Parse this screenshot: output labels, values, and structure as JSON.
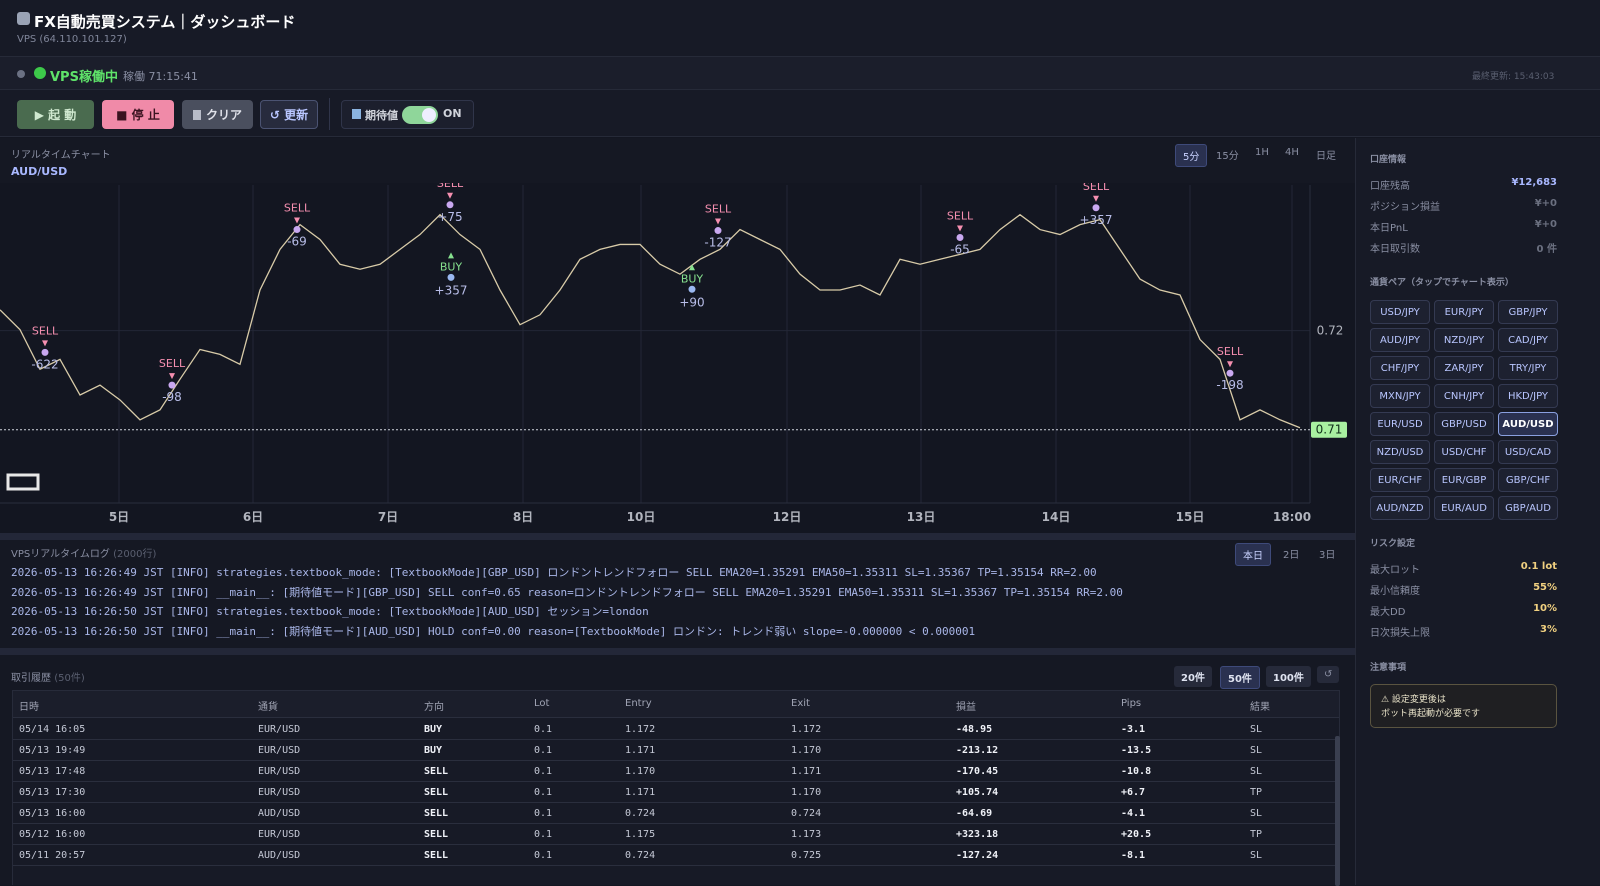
{
  "header": {
    "title": "FX自動売買システム｜ダッシュボード",
    "subtitle": "VPS (64.110.101.127)"
  },
  "status": {
    "state": "VPS稼働中",
    "uptime": "稼働 71:15:41",
    "updated": "最終更新: 15:43:03"
  },
  "toolbar": {
    "start": "▶ 起 動",
    "stop": "■ 停 止",
    "clear": "クリア",
    "refresh": "↺ 更新",
    "toggle": "期待値",
    "toggle_state": "ON"
  },
  "chart_panel": {
    "title": "リアルタイムチャート",
    "timeframes": [
      "5分",
      "15分",
      "1H",
      "4H",
      "日足"
    ],
    "active_timeframe": 0,
    "symbol": "AUD/USD"
  },
  "chart_data": {
    "type": "line",
    "color": "#d8cba8",
    "values": [
      0.7221,
      0.7201,
      0.7161,
      0.7171,
      0.7135,
      0.7145,
      0.713,
      0.711,
      0.712,
      0.7151,
      0.7181,
      0.7176,
      0.7166,
      0.7241,
      0.7282,
      0.7307,
      0.7292,
      0.7267,
      0.7262,
      0.7267,
      0.7282,
      0.7297,
      0.7317,
      0.7297,
      0.7282,
      0.7241,
      0.7206,
      0.7216,
      0.7241,
      0.7272,
      0.7282,
      0.7287,
      0.7287,
      0.7267,
      0.7257,
      0.7272,
      0.7282,
      0.7302,
      0.7292,
      0.7282,
      0.7257,
      0.7241,
      0.7241,
      0.7246,
      0.7236,
      0.7272,
      0.7267,
      0.7272,
      0.7277,
      0.7282,
      0.7302,
      0.7317,
      0.7302,
      0.7297,
      0.7307,
      0.7312,
      0.7282,
      0.7252,
      0.7241,
      0.7236,
      0.7191,
      0.7171,
      0.711,
      0.712,
      0.711,
      0.7102
    ],
    "xlim": [
      0,
      65.5
    ],
    "ylim": [
      0.7026,
      0.7347
    ],
    "yticks": [
      0.72
    ],
    "current_price": 0.71,
    "grid": true,
    "xticks": [
      {
        "value": 5.95,
        "label": "5日"
      },
      {
        "value": 12.65,
        "label": "6日"
      },
      {
        "value": 19.4,
        "label": "7日"
      },
      {
        "value": 26.15,
        "label": "8日"
      },
      {
        "value": 32.05,
        "label": "10日"
      },
      {
        "value": 39.35,
        "label": "12日"
      },
      {
        "value": 46.05,
        "label": "13日"
      },
      {
        "value": 52.8,
        "label": "14日"
      },
      {
        "value": 59.5,
        "label": "15日"
      },
      {
        "value": 64.6,
        "label": "18:00"
      }
    ],
    "trades": [
      {
        "side": "SELL",
        "x": 2.25,
        "y": 0.7176,
        "pnl": "-622"
      },
      {
        "side": "SELL",
        "x": 8.6,
        "y": 0.7143,
        "pnl": "-98"
      },
      {
        "side": "SELL",
        "x": 14.85,
        "y": 0.73,
        "pnl": "-69"
      },
      {
        "side": "SELL",
        "x": 22.5,
        "y": 0.7325,
        "pnl": "+75"
      },
      {
        "side": "BUY",
        "x": 22.55,
        "y": 0.7279,
        "pnl": "+357"
      },
      {
        "side": "BUY",
        "x": 34.6,
        "y": 0.7267,
        "pnl": "+90"
      },
      {
        "side": "SELL",
        "x": 35.9,
        "y": 0.7299,
        "pnl": "-127"
      },
      {
        "side": "SELL",
        "x": 48.0,
        "y": 0.7292,
        "pnl": "-65"
      },
      {
        "side": "SELL",
        "x": 54.8,
        "y": 0.7322,
        "pnl": "+357"
      },
      {
        "side": "SELL",
        "x": 61.5,
        "y": 0.7155,
        "pnl": "-198"
      }
    ]
  },
  "log_panel": {
    "title": "VPSリアルタイムログ",
    "count": "(2000行)",
    "tabs": [
      "本日",
      "2日",
      "3日"
    ],
    "active_tab": 0,
    "lines": [
      "2026-05-13 16:26:49 JST [INFO] strategies.textbook_mode: [TextbookMode][GBP_USD] ロンドントレンドフォロー SELL EMA20=1.35291 EMA50=1.35311 SL=1.35367 TP=1.35154 RR=2.00",
      "2026-05-13 16:26:49 JST [INFO] __main__: [期待値モード][GBP_USD] SELL conf=0.65 reason=ロンドントレンドフォロー SELL EMA20=1.35291 EMA50=1.35311 SL=1.35367 TP=1.35154 RR=2.00",
      "2026-05-13 16:26:50 JST [INFO] strategies.textbook_mode: [TextbookMode][AUD_USD] セッション=london",
      "2026-05-13 16:26:50 JST [INFO] __main__: [期待値モード][AUD_USD] HOLD conf=0.00 reason=[TextbookMode] ロンドン: トレンド弱い slope=-0.000000 < 0.000001"
    ]
  },
  "trade_panel": {
    "title": "取引履歴",
    "count": "(50件)",
    "limits": [
      "20件",
      "50件",
      "100件"
    ],
    "active_limit": 1,
    "refresh": "↺",
    "table": {
      "headers": [
        "日時",
        "通貨",
        "方向",
        "Lot",
        "Entry",
        "Exit",
        "損益",
        "Pips",
        "結果"
      ],
      "rows": [
        [
          "05/14 16:05",
          "EUR/USD",
          "BUY",
          "0.1",
          "1.172",
          "1.172",
          "-48.95",
          "-3.1",
          "SL"
        ],
        [
          "05/13 19:49",
          "EUR/USD",
          "BUY",
          "0.1",
          "1.171",
          "1.170",
          "-213.12",
          "-13.5",
          "SL"
        ],
        [
          "05/13 17:48",
          "EUR/USD",
          "SELL",
          "0.1",
          "1.170",
          "1.171",
          "-170.45",
          "-10.8",
          "SL"
        ],
        [
          "05/13 17:30",
          "EUR/USD",
          "SELL",
          "0.1",
          "1.171",
          "1.170",
          "+105.74",
          "+6.7",
          "TP"
        ],
        [
          "05/13 16:00",
          "AUD/USD",
          "SELL",
          "0.1",
          "0.724",
          "0.724",
          "-64.69",
          "-4.1",
          "SL"
        ],
        [
          "05/12 16:00",
          "EUR/USD",
          "SELL",
          "0.1",
          "1.175",
          "1.173",
          "+323.18",
          "+20.5",
          "TP"
        ],
        [
          "05/11 20:57",
          "AUD/USD",
          "SELL",
          "0.1",
          "0.724",
          "0.725",
          "-127.24",
          "-8.1",
          "SL"
        ]
      ]
    }
  },
  "sidebar": {
    "account_title": "口座情報",
    "account": [
      [
        "口座残高",
        "¥12,683"
      ],
      [
        "ポジション損益",
        "¥+0"
      ],
      [
        "本日PnL",
        "¥+0"
      ],
      [
        "本日取引数",
        "0 件"
      ]
    ],
    "pairs_title": "通貨ペア（タップでチャート表示）",
    "pairs": [
      "USD/JPY",
      "EUR/JPY",
      "GBP/JPY",
      "AUD/JPY",
      "NZD/JPY",
      "CAD/JPY",
      "CHF/JPY",
      "ZAR/JPY",
      "TRY/JPY",
      "MXN/JPY",
      "CNH/JPY",
      "HKD/JPY",
      "EUR/USD",
      "GBP/USD",
      "AUD/USD",
      "NZD/USD",
      "USD/CHF",
      "USD/CAD",
      "EUR/CHF",
      "EUR/GBP",
      "GBP/CHF",
      "AUD/NZD",
      "EUR/AUD",
      "GBP/AUD"
    ],
    "active_pair": 14,
    "risk_title": "リスク設定",
    "risk": [
      [
        "最大ロット",
        "0.1 lot"
      ],
      [
        "最小信頼度",
        "55%"
      ],
      [
        "最大DD",
        "10%"
      ],
      [
        "日次損失上限",
        "3%"
      ]
    ],
    "notes_title": "注意事項",
    "notes": [
      "⚠ 設定変更後は",
      "ボット再起動が必要です"
    ]
  }
}
